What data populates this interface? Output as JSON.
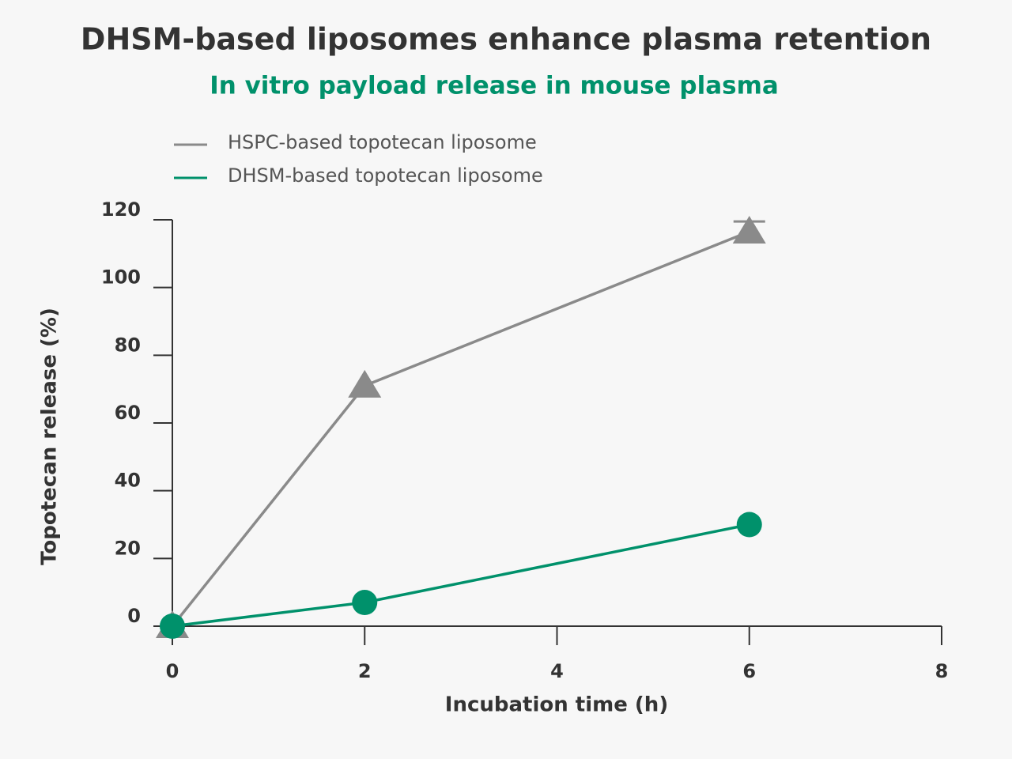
{
  "chart_data": {
    "type": "line",
    "title": "DHSM-based liposomes enhance plasma retention",
    "subtitle": "In vitro payload release in mouse plasma",
    "x_label": "Incubation time (h)",
    "y_label": "Topotecan release (%)",
    "x": [
      0,
      2,
      6
    ],
    "series": [
      {
        "name": "HSPC-based topotecan liposome",
        "color": "#8a8a8a",
        "marker": "triangle",
        "values": [
          0,
          71,
          116.5
        ],
        "errors": [
          null,
          null,
          3
        ]
      },
      {
        "name": "DHSM-based topotecan liposome",
        "color": "#00916b",
        "marker": "circle",
        "values": [
          0,
          7,
          30
        ]
      }
    ],
    "xlim": [
      0,
      8
    ],
    "xticks": [
      0,
      2,
      4,
      6,
      8
    ],
    "ylim": [
      0,
      120
    ],
    "yticks": [
      0,
      20,
      40,
      60,
      80,
      100,
      120
    ],
    "grid": false
  }
}
